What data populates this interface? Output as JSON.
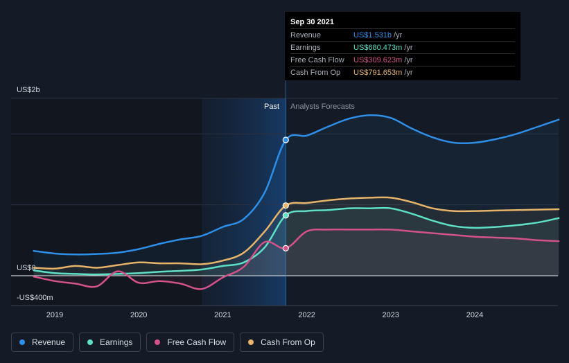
{
  "chart_data": {
    "type": "line",
    "y_top_label": "US$2b",
    "y_zero_label": "US$0",
    "y_bottom_label": "-US$400m",
    "ylim": [
      -400,
      2000
    ],
    "x_tick_labels": [
      "2019",
      "2020",
      "2021",
      "2022",
      "2023",
      "2024"
    ],
    "region_past_label": "Past",
    "region_forecast_label": "Analysts Forecasts",
    "series": [
      {
        "name": "Revenue",
        "color": "#2e8fe8",
        "x": [
          2018.75,
          2019.0,
          2019.25,
          2019.5,
          2019.75,
          2020.0,
          2020.25,
          2020.5,
          2020.75,
          2021.0,
          2021.25,
          2021.5,
          2021.75,
          2022.0,
          2022.25,
          2022.5,
          2022.75,
          2023.0,
          2023.25,
          2023.5,
          2023.75,
          2024.0,
          2024.25,
          2024.5,
          2024.75,
          2025.0
        ],
        "values": [
          280,
          250,
          240,
          245,
          260,
          300,
          360,
          410,
          450,
          550,
          640,
          940,
          1531,
          1580,
          1680,
          1770,
          1810,
          1780,
          1660,
          1560,
          1500,
          1500,
          1540,
          1600,
          1680,
          1760
        ]
      },
      {
        "name": "Earnings",
        "color": "#5de0c5",
        "x": [
          2018.75,
          2019.0,
          2019.25,
          2019.5,
          2019.75,
          2020.0,
          2020.25,
          2020.5,
          2020.75,
          2021.0,
          2021.25,
          2021.5,
          2021.75,
          2022.0,
          2022.25,
          2022.5,
          2022.75,
          2023.0,
          2023.25,
          2023.5,
          2023.75,
          2024.0,
          2024.25,
          2024.5,
          2024.75,
          2025.0
        ],
        "values": [
          60,
          30,
          20,
          15,
          20,
          30,
          45,
          55,
          70,
          110,
          150,
          320,
          680.473,
          730,
          740,
          760,
          760,
          760,
          700,
          620,
          560,
          540,
          550,
          570,
          600,
          650
        ]
      },
      {
        "name": "Free Cash Flow",
        "color": "#d4528a",
        "x": [
          2018.75,
          2019.0,
          2019.25,
          2019.5,
          2019.75,
          2020.0,
          2020.25,
          2020.5,
          2020.75,
          2021.0,
          2021.25,
          2021.5,
          2021.75,
          2022.0,
          2022.25,
          2022.5,
          2022.75,
          2023.0,
          2023.25,
          2023.5,
          2023.75,
          2024.0,
          2024.25,
          2024.5,
          2024.75,
          2025.0
        ],
        "values": [
          -10,
          -60,
          -90,
          -120,
          50,
          -80,
          -60,
          -90,
          -150,
          -20,
          100,
          380,
          309.623,
          500,
          520,
          520,
          520,
          520,
          500,
          480,
          460,
          440,
          430,
          420,
          400,
          390
        ]
      },
      {
        "name": "Cash From Op",
        "color": "#e8b46a",
        "x": [
          2018.75,
          2019.0,
          2019.25,
          2019.5,
          2019.75,
          2020.0,
          2020.25,
          2020.5,
          2020.75,
          2021.0,
          2021.25,
          2021.5,
          2021.75,
          2022.0,
          2022.25,
          2022.5,
          2022.75,
          2023.0,
          2023.25,
          2023.5,
          2023.75,
          2024.0,
          2024.25,
          2024.5,
          2024.75,
          2025.0
        ],
        "values": [
          90,
          80,
          110,
          90,
          120,
          150,
          140,
          140,
          130,
          170,
          260,
          500,
          791.653,
          820,
          850,
          870,
          880,
          880,
          830,
          760,
          730,
          730,
          735,
          740,
          745,
          750
        ]
      }
    ],
    "highlight_date": 2021.75
  },
  "tooltip": {
    "date": "Sep 30 2021",
    "rows": [
      {
        "label": "Revenue",
        "value": "US$1.531b",
        "unit": "/yr",
        "color": "#2e8fe8"
      },
      {
        "label": "Earnings",
        "value": "US$680.473m",
        "unit": "/yr",
        "color": "#5de0c5"
      },
      {
        "label": "Free Cash Flow",
        "value": "US$309.623m",
        "unit": "/yr",
        "color": "#d4528a"
      },
      {
        "label": "Cash From Op",
        "value": "US$791.653m",
        "unit": "/yr",
        "color": "#e8b46a"
      }
    ]
  },
  "legend": [
    {
      "label": "Revenue",
      "color": "#2e8fe8"
    },
    {
      "label": "Earnings",
      "color": "#5de0c5"
    },
    {
      "label": "Free Cash Flow",
      "color": "#d4528a"
    },
    {
      "label": "Cash From Op",
      "color": "#e8b46a"
    }
  ]
}
